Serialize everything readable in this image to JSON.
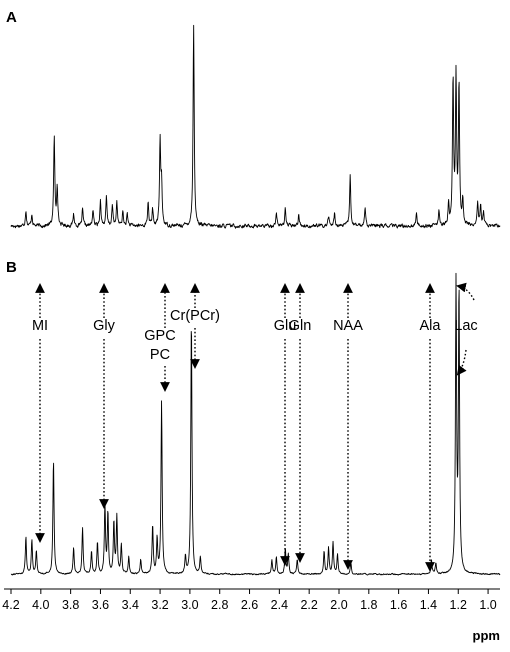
{
  "figure": {
    "panels": [
      {
        "id": "A",
        "label": "A"
      },
      {
        "id": "B",
        "label": "B"
      }
    ]
  },
  "chart_data": [
    {
      "panel": "A",
      "type": "line",
      "xlim": [
        4.2,
        0.92
      ],
      "x_reversed": true,
      "xlabel": "",
      "ylabel": "",
      "grid": false,
      "baseline": 0.02,
      "noise_level": 0.015,
      "peaks": [
        {
          "x": 4.1,
          "h": 0.08
        },
        {
          "x": 4.06,
          "h": 0.06
        },
        {
          "x": 3.91,
          "h": 0.44
        },
        {
          "x": 3.89,
          "h": 0.2
        },
        {
          "x": 3.78,
          "h": 0.06
        },
        {
          "x": 3.72,
          "h": 0.08
        },
        {
          "x": 3.65,
          "h": 0.08
        },
        {
          "x": 3.6,
          "h": 0.13
        },
        {
          "x": 3.56,
          "h": 0.14
        },
        {
          "x": 3.52,
          "h": 0.1
        },
        {
          "x": 3.49,
          "h": 0.12
        },
        {
          "x": 3.45,
          "h": 0.07
        },
        {
          "x": 3.42,
          "h": 0.06
        },
        {
          "x": 3.28,
          "h": 0.12
        },
        {
          "x": 3.25,
          "h": 0.08
        },
        {
          "x": 3.2,
          "h": 0.42
        },
        {
          "x": 3.19,
          "h": 0.2
        },
        {
          "x": 2.975,
          "h": 1.0
        },
        {
          "x": 2.42,
          "h": 0.07
        },
        {
          "x": 2.36,
          "h": 0.09
        },
        {
          "x": 2.27,
          "h": 0.06
        },
        {
          "x": 2.07,
          "h": 0.05
        },
        {
          "x": 2.03,
          "h": 0.06
        },
        {
          "x": 1.925,
          "h": 0.25
        },
        {
          "x": 1.825,
          "h": 0.1
        },
        {
          "x": 1.48,
          "h": 0.06
        },
        {
          "x": 1.33,
          "h": 0.07
        },
        {
          "x": 1.265,
          "h": 0.1
        },
        {
          "x": 1.235,
          "h": 0.72
        },
        {
          "x": 1.215,
          "h": 0.73
        },
        {
          "x": 1.195,
          "h": 0.7
        },
        {
          "x": 1.17,
          "h": 0.12
        },
        {
          "x": 1.07,
          "h": 0.12
        },
        {
          "x": 1.05,
          "h": 0.1
        },
        {
          "x": 1.03,
          "h": 0.07
        }
      ]
    },
    {
      "panel": "B",
      "type": "line",
      "xlim": [
        4.2,
        0.92
      ],
      "x_reversed": true,
      "xlabel": "ppm",
      "ylabel": "",
      "grid": false,
      "ticks": [
        4.2,
        4.0,
        3.8,
        3.6,
        3.4,
        3.2,
        3.0,
        2.8,
        2.6,
        2.4,
        2.2,
        2.0,
        1.8,
        1.6,
        1.4,
        1.2,
        1.0
      ],
      "tick_labels": [
        "4.2",
        "4.0",
        "3.8",
        "3.6",
        "3.4",
        "3.2",
        "3.0",
        "2.8",
        "2.6",
        "2.4",
        "2.2",
        "2.0",
        "1.8",
        "1.6",
        "1.4",
        "1.2",
        "1.0"
      ],
      "baseline": 0.02,
      "noise_level": 0.004,
      "peaks": [
        {
          "x": 4.1,
          "h": 0.13
        },
        {
          "x": 4.06,
          "h": 0.12
        },
        {
          "x": 4.03,
          "h": 0.08
        },
        {
          "x": 3.915,
          "h": 0.4
        },
        {
          "x": 3.78,
          "h": 0.09
        },
        {
          "x": 3.72,
          "h": 0.16
        },
        {
          "x": 3.66,
          "h": 0.08
        },
        {
          "x": 3.62,
          "h": 0.11
        },
        {
          "x": 3.57,
          "h": 0.24
        },
        {
          "x": 3.55,
          "h": 0.21
        },
        {
          "x": 3.51,
          "h": 0.18
        },
        {
          "x": 3.49,
          "h": 0.2
        },
        {
          "x": 3.46,
          "h": 0.1
        },
        {
          "x": 3.41,
          "h": 0.06
        },
        {
          "x": 3.33,
          "h": 0.05
        },
        {
          "x": 3.25,
          "h": 0.17
        },
        {
          "x": 3.22,
          "h": 0.12
        },
        {
          "x": 3.19,
          "h": 0.6
        },
        {
          "x": 3.03,
          "h": 0.06
        },
        {
          "x": 2.99,
          "h": 0.89
        },
        {
          "x": 2.93,
          "h": 0.06
        },
        {
          "x": 2.45,
          "h": 0.05
        },
        {
          "x": 2.42,
          "h": 0.06
        },
        {
          "x": 2.36,
          "h": 0.09
        },
        {
          "x": 2.34,
          "h": 0.07
        },
        {
          "x": 2.28,
          "h": 0.05
        },
        {
          "x": 2.1,
          "h": 0.08
        },
        {
          "x": 2.07,
          "h": 0.09
        },
        {
          "x": 2.04,
          "h": 0.11
        },
        {
          "x": 2.01,
          "h": 0.07
        },
        {
          "x": 1.92,
          "h": 0.04
        },
        {
          "x": 1.38,
          "h": 0.05
        },
        {
          "x": 1.35,
          "h": 0.04
        },
        {
          "x": 1.215,
          "h": 1.0
        },
        {
          "x": 1.195,
          "h": 0.98
        }
      ],
      "annotations": [
        {
          "label": "MI",
          "x": 4.05,
          "lines": [
            "MI"
          ]
        },
        {
          "label": "Gly",
          "x": 3.56,
          "lines": [
            "Gly"
          ]
        },
        {
          "label": "GPC PC",
          "x": 3.21,
          "lines": [
            "GPC",
            "PC"
          ]
        },
        {
          "label": "Cr(PCr)",
          "x": 3.03,
          "lines": [
            "Cr(PCr)"
          ]
        },
        {
          "label": "Glu",
          "x": 2.35,
          "lines": [
            "Glu"
          ]
        },
        {
          "label": "Gln",
          "x": 2.27,
          "lines": [
            "Gln"
          ]
        },
        {
          "label": "NAA",
          "x": 2.02,
          "lines": [
            "NAA"
          ]
        },
        {
          "label": "Ala",
          "x": 1.38,
          "lines": [
            "Ala"
          ]
        },
        {
          "label": "Lac",
          "x": 1.2,
          "lines": [
            "Lac"
          ]
        }
      ]
    }
  ]
}
